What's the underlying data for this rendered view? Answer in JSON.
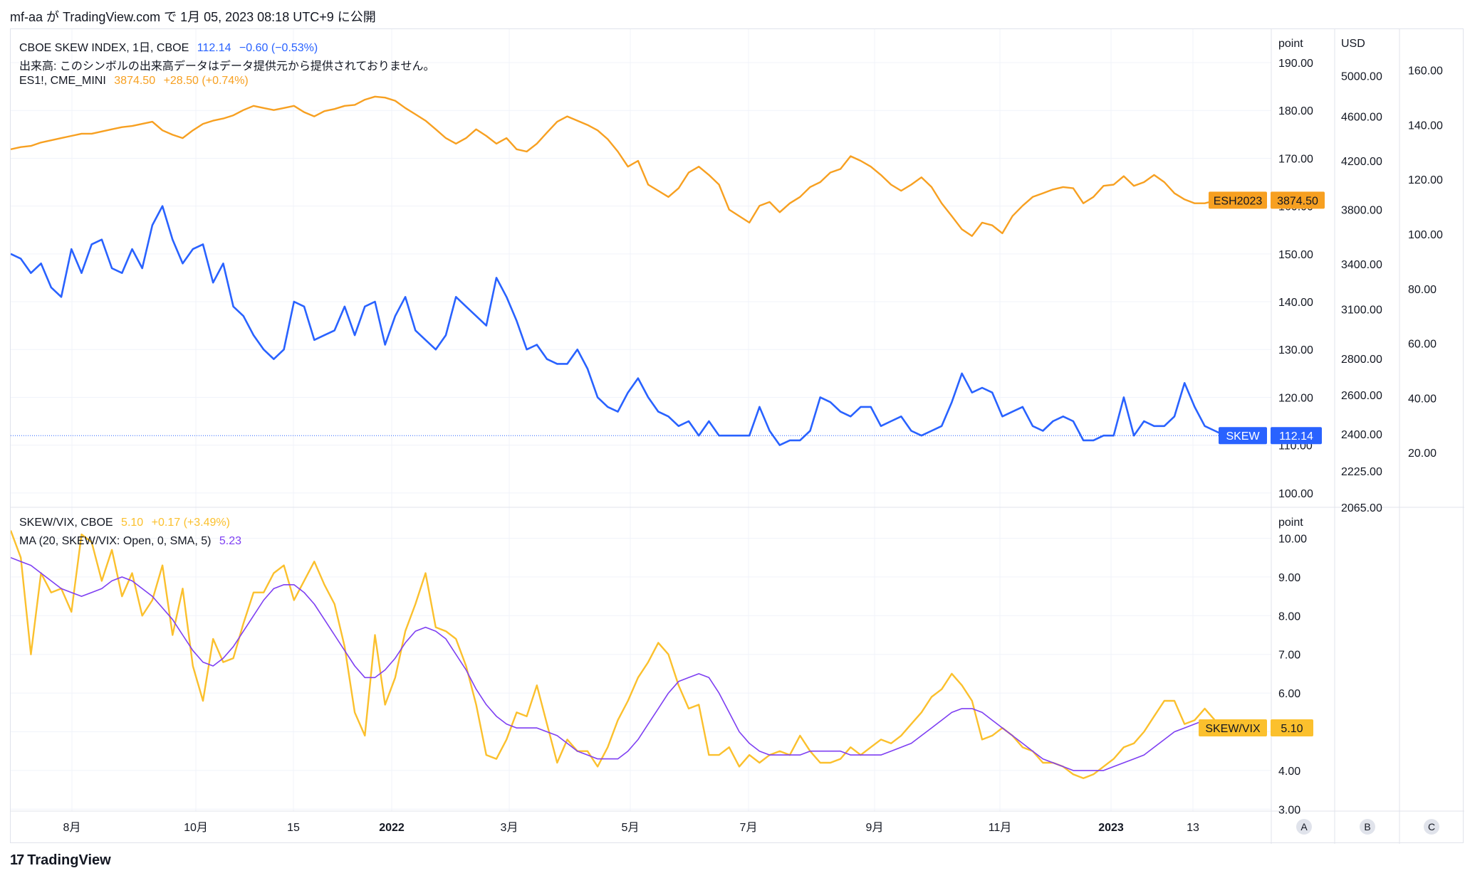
{
  "header": {
    "publish_line": "mf-aa が TradingView.com で 1月 05, 2023 08:18 UTC+9 に公開"
  },
  "footer": {
    "brand": "TradingView",
    "logo_glyph": "17"
  },
  "legend_top": {
    "skew_name": "CBOE SKEW INDEX, 1日, CBOE",
    "skew_value": "112.14",
    "skew_change": "−0.60 (−0.53%)",
    "volume_note": "出来高: このシンボルの出来高データはデータ提供元から提供されておりません。",
    "es_name": "ES1!, CME_MINI",
    "es_value": "3874.50",
    "es_change": "+28.50 (+0.74%)"
  },
  "legend_bottom": {
    "ratio_name": "SKEW/VIX, CBOE",
    "ratio_value": "5.10",
    "ratio_change": "+0.17 (+3.49%)",
    "ma_name": "MA (20, SKEW/VIX: Open, 0, SMA, 5)",
    "ma_value": "5.23"
  },
  "axes": {
    "top_unit": "point",
    "usd_unit": "USD",
    "bottom_unit": "point",
    "corner_buttons": [
      "A",
      "B",
      "C"
    ]
  },
  "price_tags": {
    "esh": {
      "label": "ESH2023",
      "value": "3874.50"
    },
    "skew": {
      "label": "SKEW",
      "value": "112.14"
    },
    "ratio": {
      "label": "SKEW/VIX",
      "value": "5.10"
    }
  },
  "colors": {
    "skew": "#2962ff",
    "es": "#f7a021",
    "ratio": "#fbc02d",
    "ma": "#7e3ff2",
    "grid": "#f0f3fa",
    "axis_text": "#131722"
  },
  "chart_data": [
    {
      "type": "line",
      "pane": "top",
      "x_range": [
        "2021-07-01",
        "2023-01-05"
      ],
      "x_ticks": [
        "8月",
        "10月",
        "15",
        "2022",
        "3月",
        "5月",
        "7月",
        "9月",
        "11月",
        "2023",
        "13"
      ],
      "axes": [
        {
          "name": "point",
          "position": "right-1",
          "range": [
            97,
            197
          ],
          "ticks": [
            100,
            110,
            120,
            130,
            140,
            150,
            160,
            170,
            180,
            190
          ]
        },
        {
          "name": "USD",
          "position": "right-2",
          "scale": "log",
          "range": [
            2065,
            5500
          ],
          "ticks": [
            2065,
            2225,
            2400,
            2600,
            2800,
            3100,
            3400,
            3800,
            4200,
            4600,
            5000
          ]
        },
        {
          "name": "",
          "position": "right-3",
          "range": [
            0,
            175
          ],
          "ticks": [
            20,
            40,
            60,
            80,
            100,
            120,
            140,
            160
          ]
        }
      ],
      "series": [
        {
          "name": "CBOE SKEW INDEX",
          "axis": "point",
          "values": [
            150,
            149,
            146,
            148,
            143,
            141,
            151,
            146,
            152,
            153,
            147,
            146,
            151,
            147,
            156,
            160,
            153,
            148,
            151,
            152,
            144,
            148,
            139,
            137,
            133,
            130,
            128,
            130,
            140,
            139,
            132,
            133,
            134,
            139,
            133,
            139,
            140,
            131,
            137,
            141,
            134,
            132,
            130,
            133,
            141,
            139,
            137,
            135,
            145,
            141,
            136,
            130,
            131,
            128,
            127,
            127,
            130,
            126,
            120,
            118,
            117,
            121,
            124,
            120,
            117,
            116,
            114,
            115,
            112,
            115,
            112,
            112,
            112,
            112,
            118,
            113,
            110,
            111,
            111,
            113,
            120,
            119,
            117,
            116,
            118,
            118,
            114,
            115,
            116,
            113,
            112,
            113,
            114,
            119,
            125,
            121,
            122,
            121,
            116,
            117,
            118,
            114,
            113,
            115,
            116,
            115,
            111,
            111,
            112,
            112,
            120,
            112,
            115,
            114,
            114,
            116,
            123,
            118,
            114,
            113,
            112
          ]
        },
        {
          "name": "ES1!",
          "axis": "USD",
          "values": [
            4300,
            4320,
            4330,
            4360,
            4380,
            4400,
            4420,
            4440,
            4440,
            4460,
            4480,
            4500,
            4510,
            4530,
            4550,
            4470,
            4430,
            4400,
            4470,
            4530,
            4560,
            4580,
            4610,
            4660,
            4700,
            4680,
            4660,
            4680,
            4700,
            4640,
            4600,
            4650,
            4670,
            4700,
            4710,
            4760,
            4790,
            4780,
            4750,
            4680,
            4620,
            4560,
            4480,
            4400,
            4350,
            4400,
            4480,
            4420,
            4350,
            4400,
            4300,
            4280,
            4350,
            4450,
            4550,
            4600,
            4560,
            4520,
            4470,
            4390,
            4280,
            4150,
            4200,
            4000,
            3950,
            3900,
            3970,
            4100,
            4150,
            4080,
            4000,
            3800,
            3750,
            3700,
            3830,
            3860,
            3780,
            3850,
            3900,
            3980,
            4020,
            4100,
            4130,
            4240,
            4200,
            4150,
            4080,
            4000,
            3950,
            4000,
            4060,
            3980,
            3850,
            3750,
            3650,
            3600,
            3700,
            3680,
            3620,
            3750,
            3830,
            3900,
            3930,
            3960,
            3980,
            3970,
            3850,
            3900,
            3990,
            4000,
            4070,
            3990,
            4020,
            4080,
            4020,
            3930,
            3880,
            3850,
            3850,
            3870,
            3874.5
          ]
        },
        {
          "name": "",
          "axis": "right-3",
          "values": []
        }
      ]
    },
    {
      "type": "line",
      "pane": "bottom",
      "x_range": [
        "2021-07-01",
        "2023-01-05"
      ],
      "axes": [
        {
          "name": "point",
          "position": "right-1",
          "range": [
            2.95,
            10.8
          ],
          "ticks": [
            3,
            4,
            5,
            6,
            7,
            8,
            9,
            10
          ]
        }
      ],
      "series": [
        {
          "name": "SKEW/VIX",
          "values": [
            10.2,
            9.5,
            7,
            9.1,
            8.6,
            8.7,
            8.1,
            10.1,
            9.9,
            8.9,
            9.7,
            8.5,
            9.1,
            8,
            8.4,
            9.3,
            7.5,
            8.7,
            6.7,
            5.8,
            7.4,
            6.8,
            6.9,
            7.8,
            8.6,
            8.6,
            9.1,
            9.3,
            8.4,
            8.9,
            9.4,
            8.8,
            8.3,
            7.2,
            5.5,
            4.9,
            7.5,
            5.7,
            6.4,
            7.6,
            8.3,
            9.1,
            7.7,
            7.6,
            7.4,
            6.7,
            5.7,
            4.4,
            4.3,
            4.8,
            5.5,
            5.4,
            6.2,
            5.2,
            4.2,
            4.8,
            4.5,
            4.5,
            4.1,
            4.6,
            5.3,
            5.8,
            6.4,
            6.8,
            7.3,
            7,
            6.2,
            5.6,
            5.7,
            4.4,
            4.4,
            4.6,
            4.1,
            4.4,
            4.2,
            4.4,
            4.5,
            4.4,
            4.9,
            4.5,
            4.2,
            4.2,
            4.3,
            4.6,
            4.4,
            4.6,
            4.8,
            4.7,
            4.9,
            5.2,
            5.5,
            5.9,
            6.1,
            6.5,
            6.2,
            5.8,
            4.8,
            4.9,
            5.1,
            4.9,
            4.6,
            4.5,
            4.2,
            4.2,
            4.1,
            3.9,
            3.8,
            3.9,
            4.1,
            4.3,
            4.6,
            4.7,
            5,
            5.4,
            5.8,
            5.8,
            5.2,
            5.3,
            5.6,
            5.3,
            5.1
          ]
        },
        {
          "name": "MA (20, SKEW/VIX: Open, 0, SMA, 5)",
          "values": [
            9.5,
            9.4,
            9.3,
            9.1,
            8.9,
            8.7,
            8.6,
            8.5,
            8.6,
            8.7,
            8.9,
            9,
            8.9,
            8.7,
            8.5,
            8.2,
            7.9,
            7.5,
            7.1,
            6.8,
            6.7,
            6.9,
            7.2,
            7.6,
            8,
            8.4,
            8.7,
            8.8,
            8.8,
            8.6,
            8.3,
            7.9,
            7.5,
            7.1,
            6.7,
            6.4,
            6.4,
            6.6,
            6.9,
            7.3,
            7.6,
            7.7,
            7.6,
            7.4,
            7,
            6.6,
            6.1,
            5.7,
            5.4,
            5.2,
            5.1,
            5.1,
            5.1,
            5,
            4.9,
            4.7,
            4.5,
            4.4,
            4.3,
            4.3,
            4.3,
            4.5,
            4.8,
            5.2,
            5.6,
            6,
            6.3,
            6.4,
            6.5,
            6.4,
            6,
            5.5,
            5,
            4.7,
            4.5,
            4.4,
            4.4,
            4.4,
            4.4,
            4.5,
            4.5,
            4.5,
            4.5,
            4.4,
            4.4,
            4.4,
            4.4,
            4.5,
            4.6,
            4.7,
            4.9,
            5.1,
            5.3,
            5.5,
            5.6,
            5.6,
            5.5,
            5.3,
            5.1,
            4.9,
            4.7,
            4.5,
            4.3,
            4.2,
            4.1,
            4,
            4,
            4,
            4,
            4.1,
            4.2,
            4.3,
            4.4,
            4.6,
            4.8,
            5,
            5.1,
            5.2,
            5.3,
            5.3,
            5.23
          ]
        }
      ]
    }
  ]
}
